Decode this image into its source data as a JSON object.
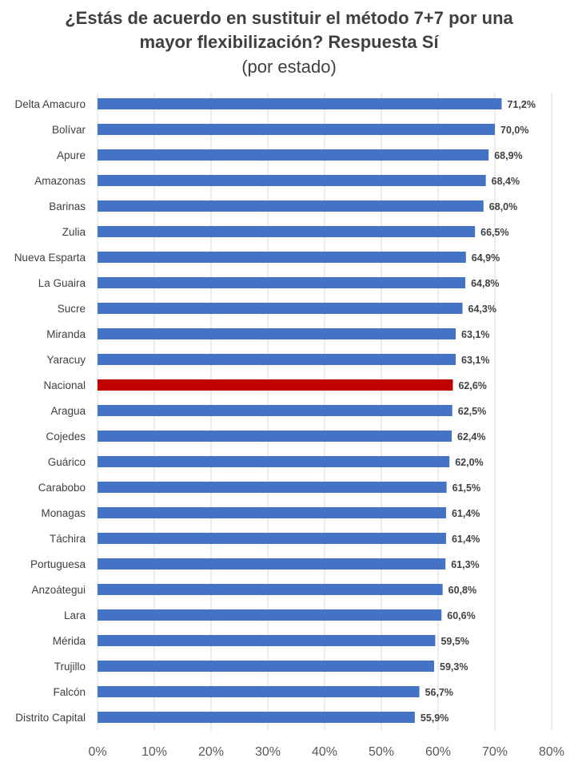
{
  "chart_data": {
    "type": "bar",
    "orientation": "horizontal",
    "title_line1": "¿Estás de acuerdo en sustituir el método 7+7 por una",
    "title_line2": "mayor flexibilización? Respuesta Sí",
    "subtitle": "(por estado)",
    "categories": [
      "Delta Amacuro",
      "Bolívar",
      "Apure",
      "Amazonas",
      "Barinas",
      "Zulia",
      "Nueva Esparta",
      "La Guaira",
      "Sucre",
      "Miranda",
      "Yaracuy",
      "Nacional",
      "Aragua",
      "Cojedes",
      "Guárico",
      "Carabobo",
      "Monagas",
      "Táchira",
      "Portuguesa",
      "Anzoátegui",
      "Lara",
      "Mérida",
      "Trujillo",
      "Falcón",
      "Distrito Capital"
    ],
    "values": [
      71.2,
      70.0,
      68.9,
      68.4,
      68.0,
      66.5,
      64.9,
      64.8,
      64.3,
      63.1,
      63.1,
      62.6,
      62.5,
      62.4,
      62.0,
      61.5,
      61.4,
      61.4,
      61.3,
      60.8,
      60.6,
      59.5,
      59.3,
      56.7,
      55.9
    ],
    "value_labels": [
      "71,2%",
      "70,0%",
      "68,9%",
      "68,4%",
      "68,0%",
      "66,5%",
      "64,9%",
      "64,8%",
      "64,3%",
      "63,1%",
      "63,1%",
      "62,6%",
      "62,5%",
      "62,4%",
      "62,0%",
      "61,5%",
      "61,4%",
      "61,4%",
      "61,3%",
      "60,8%",
      "60,6%",
      "59,5%",
      "59,3%",
      "56,7%",
      "55,9%"
    ],
    "highlight_category": "Nacional",
    "xlim": [
      0,
      80
    ],
    "x_ticks": [
      0,
      10,
      20,
      30,
      40,
      50,
      60,
      70,
      80
    ],
    "x_tick_labels": [
      "0%",
      "10%",
      "20%",
      "30%",
      "40%",
      "50%",
      "60%",
      "70%",
      "80%"
    ],
    "grid": "vertical",
    "colors": {
      "bar": "#4472C4",
      "highlight": "#C00000",
      "grid": "#D9D9D9",
      "text": "#404040"
    }
  }
}
